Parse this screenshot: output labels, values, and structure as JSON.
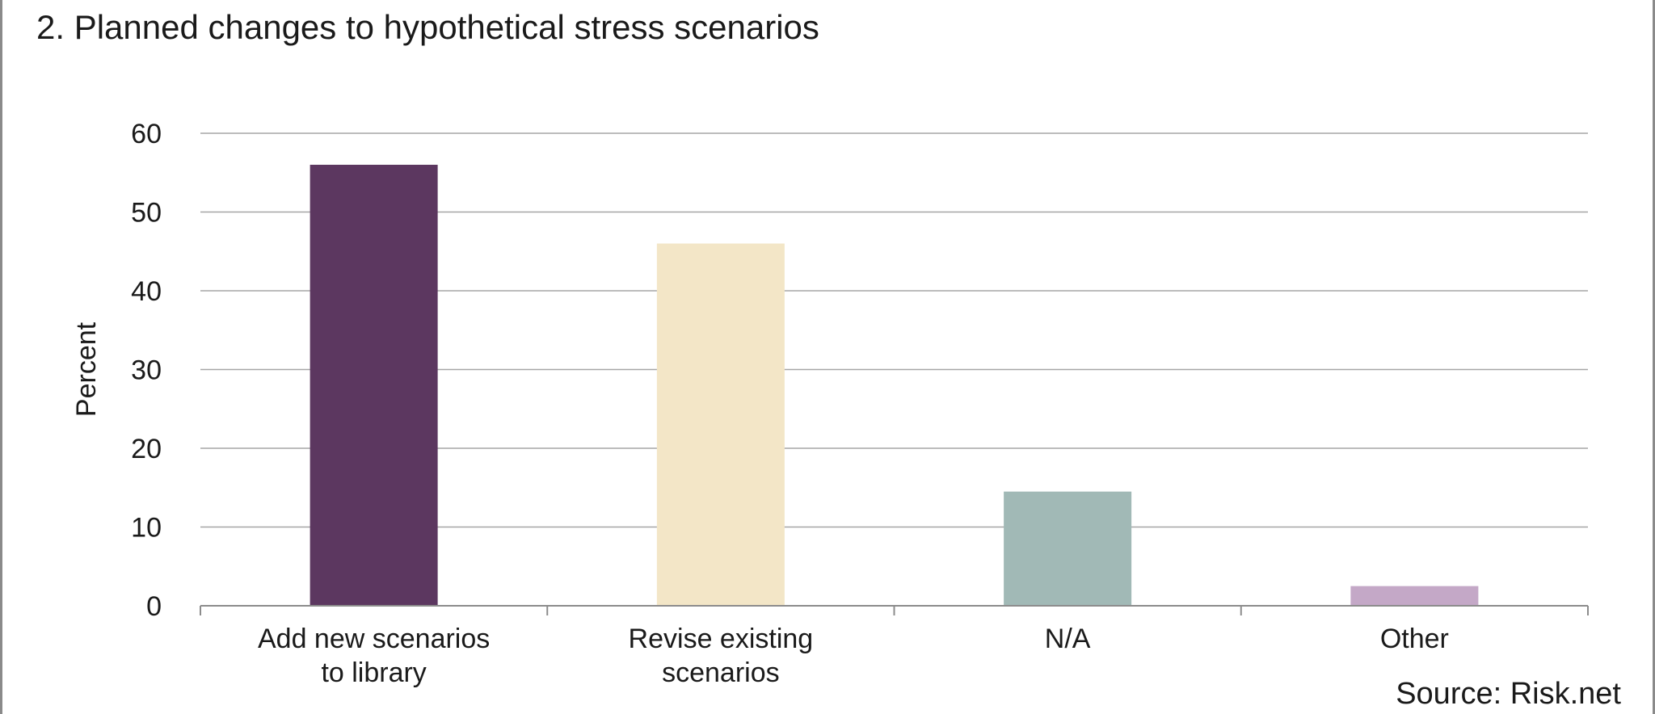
{
  "chart_data": {
    "type": "bar",
    "title": "2. Planned changes to hypothetical stress scenarios",
    "xlabel": "",
    "ylabel": "Percent",
    "categories": [
      [
        "Add new scenarios",
        "to library"
      ],
      [
        "Revise existing",
        "scenarios"
      ],
      [
        "N/A"
      ],
      [
        "Other"
      ]
    ],
    "values": [
      56,
      46,
      14.5,
      2.5
    ],
    "colors": [
      "#5c3760",
      "#f3e6c7",
      "#a1b9b6",
      "#c4a8c7"
    ],
    "ylim": [
      0,
      60
    ],
    "yticks": [
      0,
      10,
      20,
      30,
      40,
      50,
      60
    ],
    "grid": true,
    "source": "Source: Risk.net"
  }
}
